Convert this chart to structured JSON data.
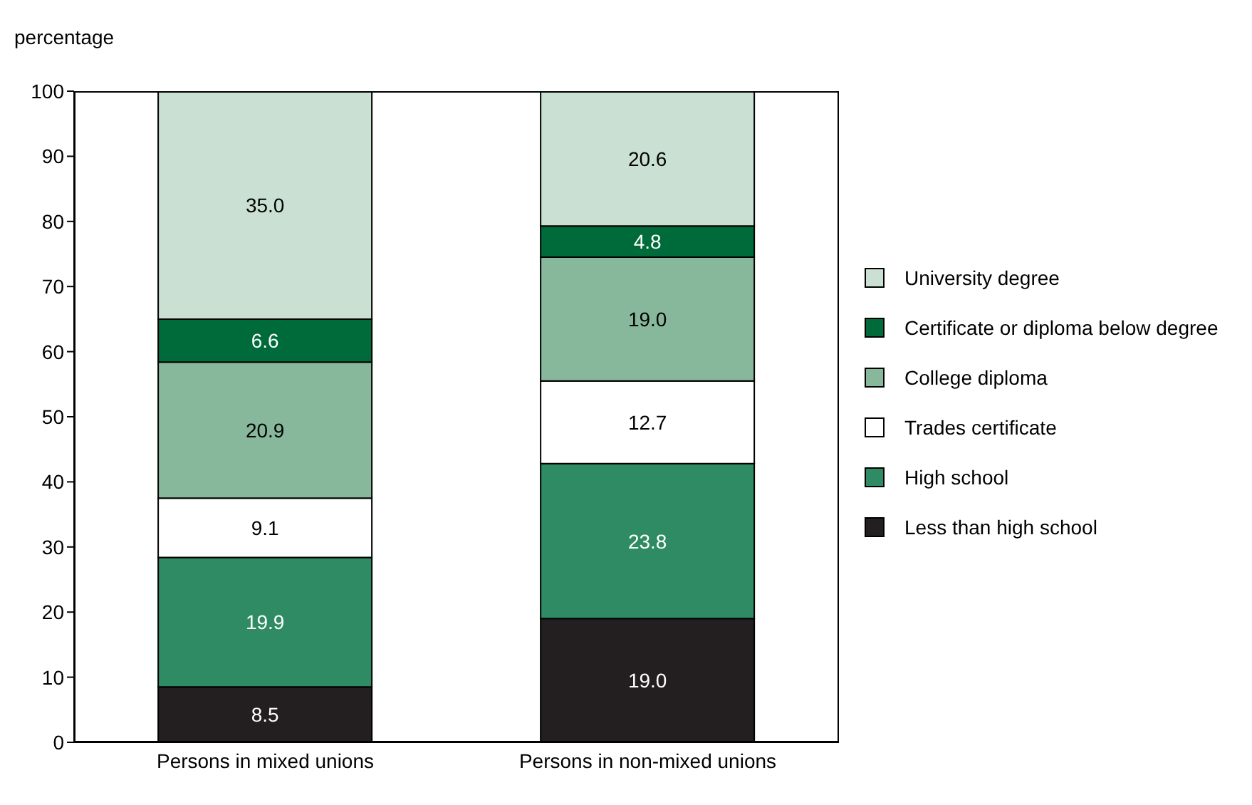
{
  "chart_data": {
    "type": "bar",
    "stacked": true,
    "ylabel": "percentage",
    "categories": [
      "Persons in mixed unions",
      "Persons in non-mixed unions"
    ],
    "series": [
      {
        "name": "Less than high school",
        "color": "#231f20",
        "values": [
          8.5,
          19.0
        ],
        "value_labels": [
          "8.5",
          "19.0"
        ]
      },
      {
        "name": "High school",
        "color": "#2e8b63",
        "values": [
          19.9,
          23.8
        ],
        "value_labels": [
          "19.9",
          "23.8"
        ]
      },
      {
        "name": "Trades certificate",
        "color": "#ffffff",
        "values": [
          9.1,
          12.7
        ],
        "value_labels": [
          "9.1",
          "12.7"
        ]
      },
      {
        "name": "College diploma",
        "color": "#88b89c",
        "values": [
          20.9,
          19.0
        ],
        "value_labels": [
          "20.9",
          "19.0"
        ]
      },
      {
        "name": "Certificate or diploma below degree",
        "color": "#006b3a",
        "values": [
          6.6,
          4.8
        ],
        "value_labels": [
          "6.6",
          "4.8"
        ]
      },
      {
        "name": "University degree",
        "color": "#c9e0d3",
        "values": [
          35.0,
          20.6
        ],
        "value_labels": [
          "35.0",
          "20.6"
        ]
      }
    ],
    "ylim": [
      0,
      100
    ],
    "yticks": [
      0,
      10,
      20,
      30,
      40,
      50,
      60,
      70,
      80,
      90,
      100
    ],
    "grid": false,
    "legend": "right"
  }
}
